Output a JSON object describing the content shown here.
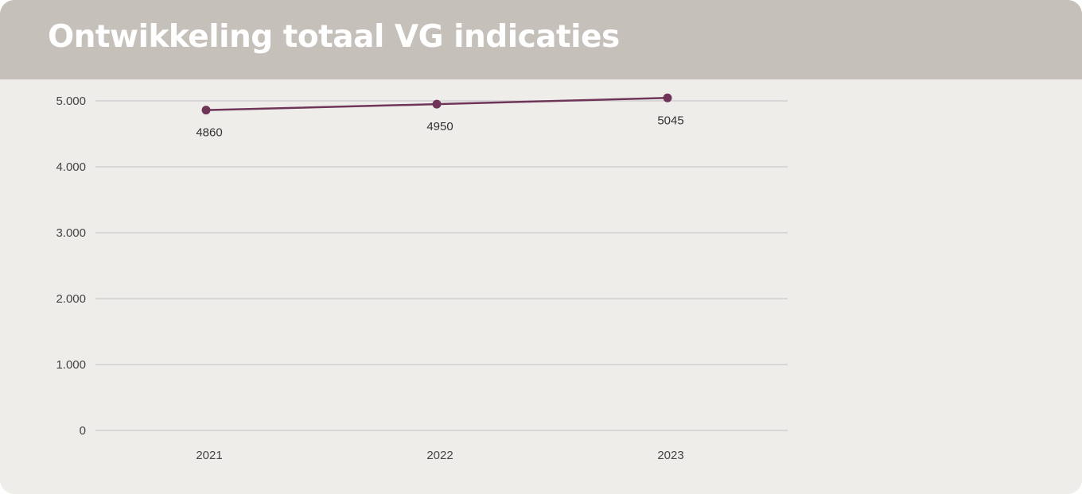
{
  "header": {
    "title": "Ontwikkeling totaal VG indicaties"
  },
  "chart_data": {
    "type": "line",
    "title": "Ontwikkeling totaal VG indicaties",
    "xlabel": "",
    "ylabel": "",
    "categories": [
      "2021",
      "2022",
      "2023"
    ],
    "series": [
      {
        "values": [
          4860,
          4950,
          5045
        ],
        "data_labels": [
          "4860",
          "4950",
          "5045"
        ],
        "color": "#6e3558"
      }
    ],
    "ylim": [
      0,
      5000
    ],
    "yticks": [
      0,
      1000,
      2000,
      3000,
      4000,
      5000
    ],
    "ytick_labels": [
      "0",
      "1.000",
      "2.000",
      "3.000",
      "4.000",
      "5.000"
    ],
    "grid": true,
    "legend": "none"
  },
  "colors": {
    "header_bg": "#c5c0b9",
    "panel_bg": "#efede9",
    "series": "#6e3558",
    "grid": "#d8d6d6"
  }
}
